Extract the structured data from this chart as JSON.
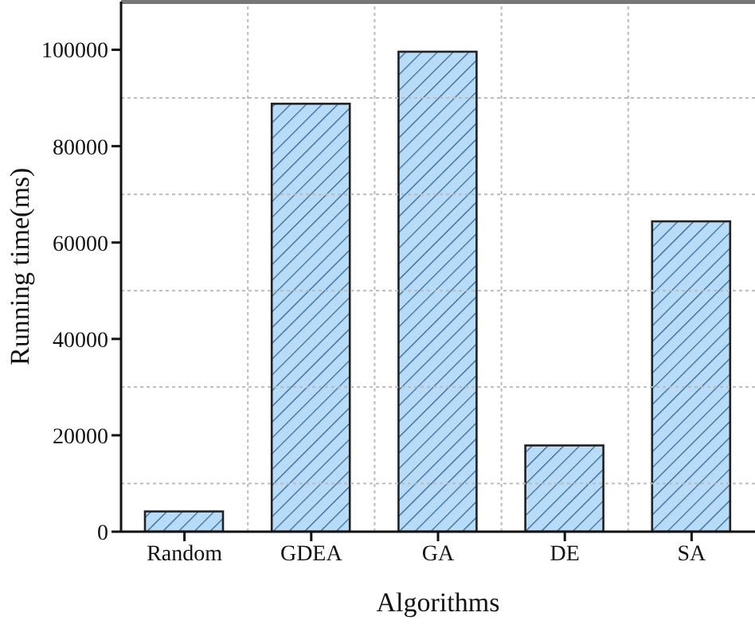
{
  "chart_data": {
    "type": "bar",
    "xlabel": "Algorithms",
    "ylabel": "Running time(ms)",
    "categories": [
      "Random",
      "GDEA",
      "GA",
      "DE",
      "SA"
    ],
    "values": [
      4200,
      88800,
      99600,
      17900,
      64400
    ],
    "color": "#b8dcf8",
    "ylim": [
      0,
      110000
    ],
    "yticks": [
      0,
      20000,
      40000,
      60000,
      80000,
      100000
    ],
    "grid": true
  }
}
